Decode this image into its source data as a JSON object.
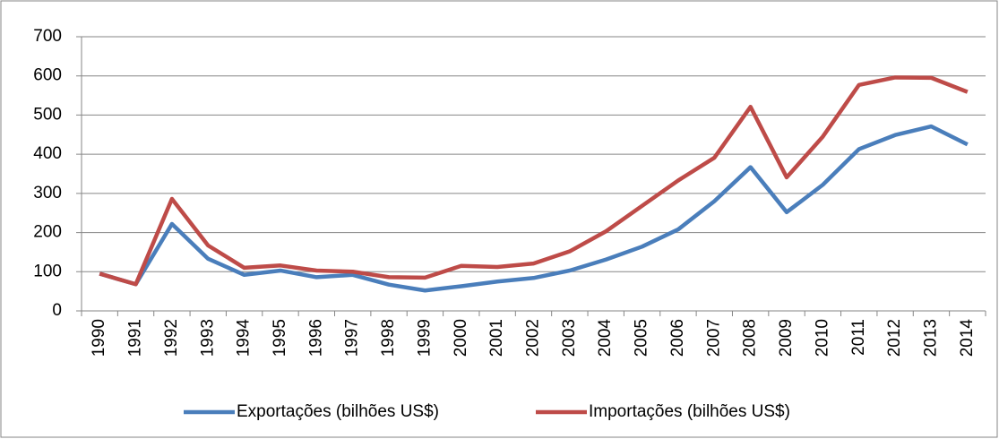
{
  "chart_data": {
    "type": "line",
    "categories": [
      "1990",
      "1991",
      "1992",
      "1993",
      "1994",
      "1995",
      "1996",
      "1997",
      "1998",
      "1999",
      "2000",
      "2001",
      "2002",
      "2003",
      "2004",
      "2005",
      "2006",
      "2007",
      "2008",
      "2009",
      "2010",
      "2011",
      "2012",
      "2013",
      "2014"
    ],
    "series": [
      {
        "name": "Exportações (bilhões US$)",
        "color": "#4a7ebb",
        "values": [
          95,
          68,
          222,
          133,
          92,
          103,
          86,
          92,
          67,
          52,
          63,
          75,
          84,
          103,
          131,
          164,
          208,
          280,
          367,
          252,
          322,
          413,
          449,
          471,
          425
        ]
      },
      {
        "name": "Importações (bilhões US$)",
        "color": "#be4b48",
        "values": [
          95,
          68,
          286,
          167,
          110,
          116,
          103,
          100,
          86,
          85,
          115,
          112,
          121,
          152,
          203,
          268,
          333,
          391,
          521,
          341,
          445,
          577,
          596,
          595,
          559
        ]
      }
    ],
    "ylim": [
      0,
      700
    ],
    "yticks": [
      0,
      100,
      200,
      300,
      400,
      500,
      600,
      700
    ],
    "grid": true,
    "legend": "bottom"
  }
}
